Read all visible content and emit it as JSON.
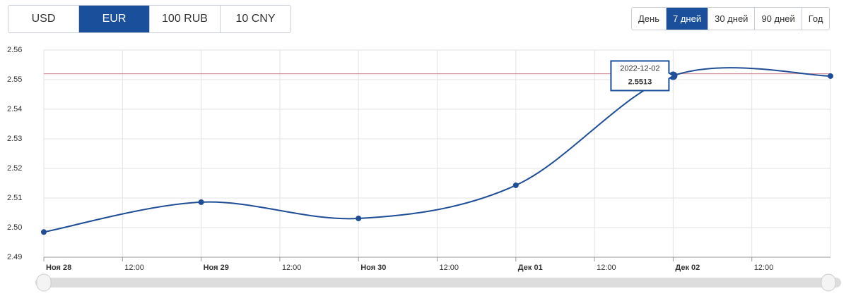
{
  "currency_buttons": [
    "USD",
    "EUR",
    "100 RUB",
    "10 CNY"
  ],
  "period_buttons": [
    "День",
    "7 дней",
    "30 дней",
    "90 дней",
    "Год"
  ],
  "chart_data": {
    "type": "line",
    "x": [
      "2022-11-28",
      "2022-11-29",
      "2022-11-30",
      "2022-12-01",
      "2022-12-02",
      "2022-12-03"
    ],
    "series": [
      {
        "color": "#1f4e96",
        "values": [
          2.4985,
          2.5086,
          2.5031,
          2.5143,
          2.5513,
          2.5512
        ]
      }
    ],
    "xlim": [
      "2022-11-28T00:00",
      "2022-12-03T00:00"
    ],
    "xticks": [
      {
        "value": "2022-11-28T00:00",
        "label": "Ноя 28"
      },
      {
        "value": "2022-11-28T12:00",
        "label": "12:00"
      },
      {
        "value": "2022-11-29T00:00",
        "label": "Ноя 29"
      },
      {
        "value": "2022-11-29T12:00",
        "label": "12:00"
      },
      {
        "value": "2022-11-30T00:00",
        "label": "Ноя 30"
      },
      {
        "value": "2022-11-30T12:00",
        "label": "12:00"
      },
      {
        "value": "2022-12-01T00:00",
        "label": "Дек 01"
      },
      {
        "value": "2022-12-01T12:00",
        "label": "12:00"
      },
      {
        "value": "2022-12-02T00:00",
        "label": "Дек 02"
      },
      {
        "value": "2022-12-02T12:00",
        "label": "12:00"
      }
    ],
    "ylim": [
      2.49,
      2.56
    ],
    "yticks": [
      2.49,
      {
        "value": 2.5,
        "label": "2.50"
      },
      2.51,
      2.52,
      2.53,
      2.54,
      2.55,
      2.56
    ],
    "reference_line": {
      "value": 2.552,
      "color": "#c9848c"
    },
    "grid": true
  }
}
